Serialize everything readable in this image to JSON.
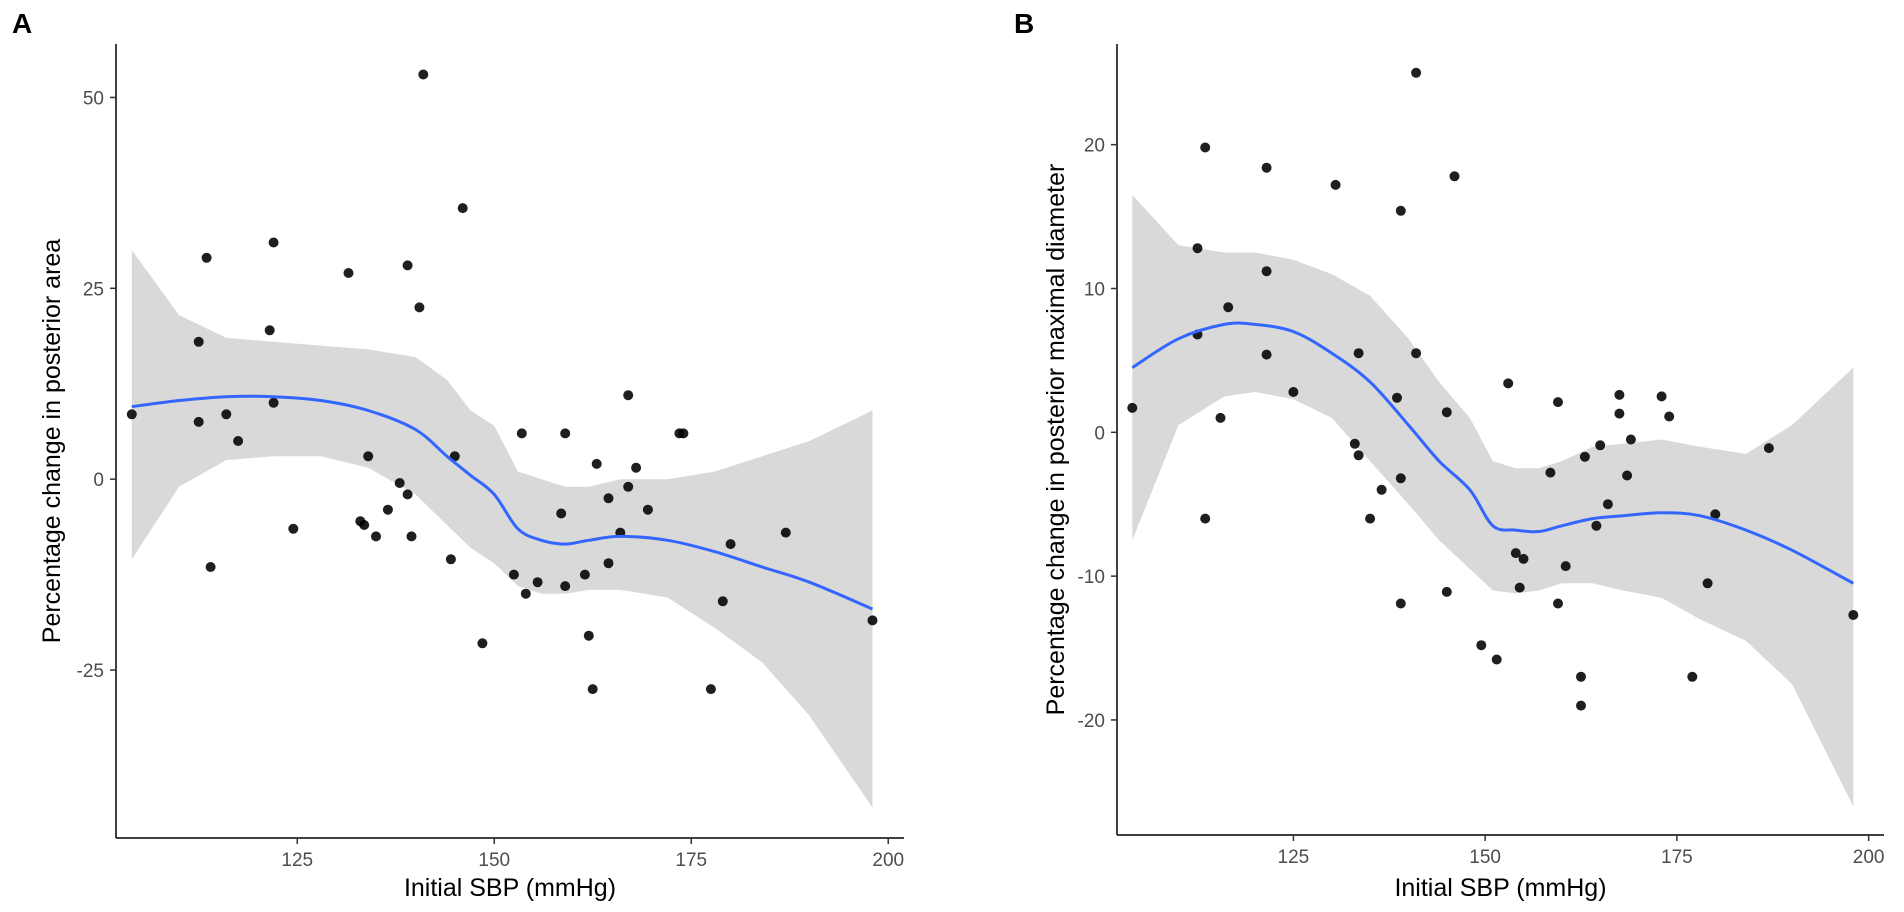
{
  "chart_data": [
    {
      "panel": "A",
      "type": "scatter",
      "xlabel": "Initial SBP (mmHg)",
      "ylabel": "Percentage change in posterior area",
      "xlim": [
        102,
        202
      ],
      "ylim": [
        -47,
        57
      ],
      "x_ticks": [
        125,
        150,
        175,
        200
      ],
      "y_ticks": [
        50,
        25,
        0,
        -25
      ],
      "x_tick_labels": [
        "125",
        "150",
        "175",
        "200"
      ],
      "y_tick_labels": [
        "50",
        "25",
        "0",
        "-25"
      ],
      "grid": false,
      "points": [
        {
          "x": 104,
          "y": 8.5
        },
        {
          "x": 112.5,
          "y": 18
        },
        {
          "x": 112.5,
          "y": 7.5
        },
        {
          "x": 113.5,
          "y": 29
        },
        {
          "x": 114,
          "y": -11.5
        },
        {
          "x": 116,
          "y": 8.5
        },
        {
          "x": 117.5,
          "y": 5
        },
        {
          "x": 121.5,
          "y": 19.5
        },
        {
          "x": 122,
          "y": 31
        },
        {
          "x": 122,
          "y": 10
        },
        {
          "x": 124.5,
          "y": -6.5
        },
        {
          "x": 131.5,
          "y": 27
        },
        {
          "x": 133,
          "y": -5.5
        },
        {
          "x": 133.5,
          "y": -6
        },
        {
          "x": 134,
          "y": 3
        },
        {
          "x": 135,
          "y": -7.5
        },
        {
          "x": 136.5,
          "y": -4
        },
        {
          "x": 138,
          "y": -0.5
        },
        {
          "x": 139,
          "y": -2
        },
        {
          "x": 139,
          "y": 28
        },
        {
          "x": 139.5,
          "y": -7.5
        },
        {
          "x": 140.5,
          "y": 22.5
        },
        {
          "x": 141,
          "y": 53
        },
        {
          "x": 144.5,
          "y": -10.5
        },
        {
          "x": 145,
          "y": 3
        },
        {
          "x": 146,
          "y": 35.5
        },
        {
          "x": 148.5,
          "y": -21.5
        },
        {
          "x": 152.5,
          "y": -12.5
        },
        {
          "x": 153.5,
          "y": 6
        },
        {
          "x": 154,
          "y": -15
        },
        {
          "x": 155.5,
          "y": -13.5
        },
        {
          "x": 158.5,
          "y": -4.5
        },
        {
          "x": 159,
          "y": 6
        },
        {
          "x": 159,
          "y": -14
        },
        {
          "x": 161.5,
          "y": -12.5
        },
        {
          "x": 162,
          "y": -20.5
        },
        {
          "x": 162.5,
          "y": -27.5
        },
        {
          "x": 163,
          "y": 2
        },
        {
          "x": 164.5,
          "y": -2.5
        },
        {
          "x": 164.5,
          "y": -11
        },
        {
          "x": 166,
          "y": -7
        },
        {
          "x": 167,
          "y": -1
        },
        {
          "x": 167,
          "y": 11
        },
        {
          "x": 168,
          "y": 1.5
        },
        {
          "x": 169.5,
          "y": -4
        },
        {
          "x": 173.5,
          "y": 6
        },
        {
          "x": 174,
          "y": 6
        },
        {
          "x": 177.5,
          "y": -27.5
        },
        {
          "x": 179,
          "y": -16
        },
        {
          "x": 180,
          "y": -8.5
        },
        {
          "x": 187,
          "y": -7
        },
        {
          "x": 198,
          "y": -18.5
        }
      ],
      "smooth_fit": {
        "x": [
          104,
          110,
          116,
          122,
          128,
          134,
          140,
          144,
          147,
          150,
          153,
          156,
          159,
          162,
          166,
          172,
          178,
          184,
          190,
          198
        ],
        "y": [
          9.5,
          10.3,
          10.8,
          10.8,
          10.3,
          9,
          6.5,
          3,
          0.5,
          -2,
          -6.5,
          -8,
          -8.5,
          -8,
          -7.5,
          -8,
          -9.5,
          -11.5,
          -13.5,
          -17
        ]
      },
      "confidence_band": {
        "x": [
          104,
          110,
          116,
          122,
          128,
          134,
          140,
          144,
          147,
          150,
          153,
          156,
          159,
          162,
          166,
          172,
          178,
          184,
          190,
          198
        ],
        "upper": [
          30,
          21.5,
          18.5,
          18,
          17.5,
          17,
          16,
          13,
          9,
          7,
          1,
          0,
          -1,
          -1,
          0,
          0,
          1,
          3,
          5,
          9
        ],
        "lower": [
          -10.5,
          -1,
          2.5,
          3,
          3,
          1.5,
          -2,
          -6,
          -9,
          -11,
          -14,
          -15,
          -15,
          -14.5,
          -14.5,
          -15.5,
          -19.5,
          -24,
          -31,
          -43
        ]
      }
    },
    {
      "panel": "B",
      "type": "scatter",
      "xlabel": "Initial SBP (mmHg)",
      "ylabel": "Percentage change in posterior maximal diameter",
      "xlim": [
        102,
        202
      ],
      "ylim": [
        -28,
        27
      ],
      "x_ticks": [
        125,
        150,
        175,
        200
      ],
      "y_ticks": [
        20,
        10,
        0,
        -10,
        -20
      ],
      "x_tick_labels": [
        "125",
        "150",
        "175",
        "200"
      ],
      "y_tick_labels": [
        "20",
        "10",
        "0",
        "-10",
        "-20"
      ],
      "grid": false,
      "points": [
        {
          "x": 104,
          "y": 1.7
        },
        {
          "x": 112.5,
          "y": 12.8
        },
        {
          "x": 112.5,
          "y": 6.8
        },
        {
          "x": 113.5,
          "y": 19.8
        },
        {
          "x": 113.5,
          "y": -6
        },
        {
          "x": 115.5,
          "y": 1
        },
        {
          "x": 116.5,
          "y": 8.7
        },
        {
          "x": 121.5,
          "y": 18.4
        },
        {
          "x": 121.5,
          "y": 11.2
        },
        {
          "x": 121.5,
          "y": 5.4
        },
        {
          "x": 125,
          "y": 2.8
        },
        {
          "x": 130.5,
          "y": 17.2
        },
        {
          "x": 133,
          "y": -0.8
        },
        {
          "x": 133.5,
          "y": 5.5
        },
        {
          "x": 133.5,
          "y": -1.6
        },
        {
          "x": 135,
          "y": -6
        },
        {
          "x": 136.5,
          "y": -4
        },
        {
          "x": 138.5,
          "y": 2.4
        },
        {
          "x": 139,
          "y": -3.2
        },
        {
          "x": 139,
          "y": -11.9
        },
        {
          "x": 139,
          "y": 15.4
        },
        {
          "x": 141,
          "y": 25
        },
        {
          "x": 141,
          "y": 5.5
        },
        {
          "x": 145,
          "y": 1.4
        },
        {
          "x": 145,
          "y": -11.1
        },
        {
          "x": 146,
          "y": 17.8
        },
        {
          "x": 149.5,
          "y": -14.8
        },
        {
          "x": 151.5,
          "y": -15.8
        },
        {
          "x": 153,
          "y": 3.4
        },
        {
          "x": 154,
          "y": -8.4
        },
        {
          "x": 154.5,
          "y": -10.8
        },
        {
          "x": 155,
          "y": -8.8
        },
        {
          "x": 158.5,
          "y": -2.8
        },
        {
          "x": 159.5,
          "y": 2.1
        },
        {
          "x": 159.5,
          "y": -11.9
        },
        {
          "x": 160.5,
          "y": -9.3
        },
        {
          "x": 162.5,
          "y": -17
        },
        {
          "x": 162.5,
          "y": -19
        },
        {
          "x": 163,
          "y": -1.7
        },
        {
          "x": 164.5,
          "y": -6.5
        },
        {
          "x": 165,
          "y": -0.9
        },
        {
          "x": 166,
          "y": -5
        },
        {
          "x": 167.5,
          "y": 2.6
        },
        {
          "x": 167.5,
          "y": 1.3
        },
        {
          "x": 168.5,
          "y": -3
        },
        {
          "x": 169,
          "y": -0.5
        },
        {
          "x": 173,
          "y": 2.5
        },
        {
          "x": 174,
          "y": 1.1
        },
        {
          "x": 177,
          "y": -17
        },
        {
          "x": 179,
          "y": -10.5
        },
        {
          "x": 180,
          "y": -5.7
        },
        {
          "x": 187,
          "y": -1.1
        },
        {
          "x": 198,
          "y": -12.7
        }
      ],
      "smooth_fit": {
        "x": [
          104,
          110,
          116,
          120,
          125,
          130,
          135,
          140,
          144,
          148,
          151,
          154,
          157,
          160,
          164,
          168,
          173,
          178,
          184,
          190,
          198
        ],
        "y": [
          4.5,
          6.5,
          7.5,
          7.5,
          7,
          5.5,
          3.5,
          0.5,
          -2,
          -4,
          -6.5,
          -6.8,
          -6.9,
          -6.5,
          -6,
          -5.8,
          -5.6,
          -5.8,
          -6.8,
          -8.2,
          -10.5
        ]
      },
      "confidence_band": {
        "x": [
          104,
          110,
          116,
          120,
          125,
          130,
          135,
          140,
          144,
          148,
          151,
          154,
          157,
          160,
          164,
          168,
          173,
          178,
          184,
          190,
          198
        ],
        "upper": [
          16.5,
          13,
          12.5,
          12.5,
          12,
          11,
          9.5,
          6.5,
          3.5,
          1,
          -2,
          -2.5,
          -2.5,
          -2,
          -1,
          -0.8,
          -0.5,
          -1,
          -1.5,
          0.5,
          4.5
        ],
        "lower": [
          -7.5,
          0.5,
          2.5,
          2.8,
          2.3,
          1,
          -2,
          -5,
          -7.5,
          -9.5,
          -11,
          -11.2,
          -11,
          -10.5,
          -10.5,
          -11,
          -11.5,
          -13,
          -14.5,
          -17.5,
          -26
        ]
      }
    }
  ]
}
